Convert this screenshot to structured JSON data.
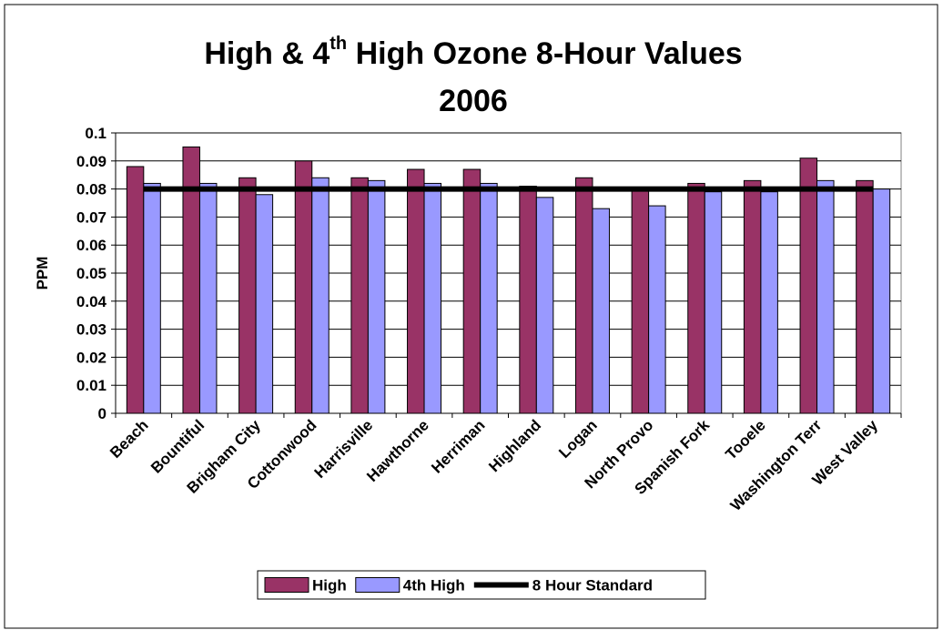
{
  "chart_data": {
    "type": "bar",
    "title": [
      "High & 4",
      "th",
      " High Ozone 8-Hour Values",
      "2006"
    ],
    "y_label": "PPM",
    "categories": [
      "Beach",
      "Bountiful",
      "Brigham City",
      "Cottonwood",
      "Harrisville",
      "Hawthorne",
      "Herriman",
      "Highland",
      "Logan",
      "North Provo",
      "Spanish Fork",
      "Tooele",
      "Washington Terr",
      "West Valley"
    ],
    "series": [
      {
        "name": "High",
        "type": "bar",
        "color": "#993366",
        "values": [
          0.088,
          0.095,
          0.084,
          0.09,
          0.084,
          0.087,
          0.087,
          0.081,
          0.084,
          0.08,
          0.082,
          0.083,
          0.091,
          0.083
        ]
      },
      {
        "name": "4th High",
        "type": "bar",
        "color": "#9999ff",
        "values": [
          0.082,
          0.082,
          0.078,
          0.084,
          0.083,
          0.082,
          0.082,
          0.077,
          0.073,
          0.074,
          0.079,
          0.079,
          0.083,
          0.08
        ]
      },
      {
        "name": "8 Hour Standard",
        "type": "line",
        "color": "#000000",
        "values": [
          0.08,
          0.08,
          0.08,
          0.08,
          0.08,
          0.08,
          0.08,
          0.08,
          0.08,
          0.08,
          0.08,
          0.08,
          0.08,
          0.08
        ]
      }
    ],
    "ylim": [
      0,
      0.1
    ],
    "yticks": [
      0,
      0.01,
      0.02,
      0.03,
      0.04,
      0.05,
      0.06,
      0.07,
      0.08,
      0.09,
      0.1
    ],
    "grid": true,
    "legend": "bottom"
  }
}
